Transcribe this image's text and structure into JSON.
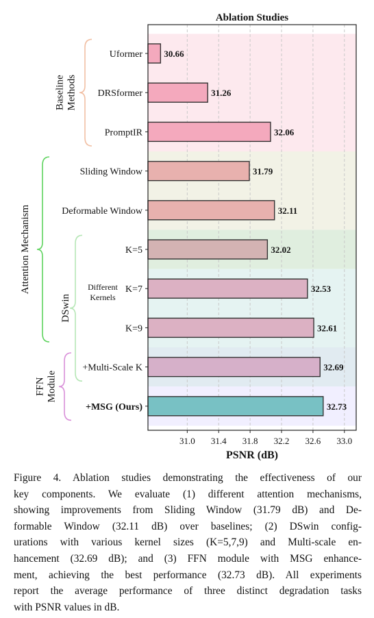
{
  "chart_data": {
    "type": "bar",
    "orientation": "horizontal",
    "title": "Ablation Studies",
    "xlabel": "PSNR (dB)",
    "xlim": [
      30.5,
      33.15
    ],
    "xticks": [
      31.0,
      31.4,
      31.8,
      32.2,
      32.6,
      33.0
    ],
    "xtick_labels": [
      "31.0",
      "31.4",
      "31.8",
      "32.2",
      "32.6",
      "33.0"
    ],
    "grid": "vertical dashed",
    "bars": [
      {
        "label": "Uformer",
        "value": 30.66,
        "value_label": "30.66",
        "color": "#f4a9bd"
      },
      {
        "label": "DRSformer",
        "value": 31.26,
        "value_label": "31.26",
        "color": "#f4a9bd"
      },
      {
        "label": "PromptIR",
        "value": 32.06,
        "value_label": "32.06",
        "color": "#f4a9bd"
      },
      {
        "label": "Sliding Window",
        "value": 31.79,
        "value_label": "31.79",
        "color": "#e8b1ae"
      },
      {
        "label": "Deformable Window",
        "value": 32.11,
        "value_label": "32.11",
        "color": "#e8b1ae"
      },
      {
        "label": "K=5",
        "value": 32.02,
        "value_label": "32.02",
        "color": "#d3b3b3"
      },
      {
        "label": "K=7",
        "value": 32.53,
        "value_label": "32.53",
        "color": "#dcb1c3"
      },
      {
        "label": "K=9",
        "value": 32.61,
        "value_label": "32.61",
        "color": "#dcb1c3"
      },
      {
        "label": "+Multi-Scale K",
        "value": 32.69,
        "value_label": "32.69",
        "color": "#d6b0c9"
      },
      {
        "label": "+MSG (Ours)",
        "value": 32.73,
        "value_label": "32.73",
        "color": "#78c1c4",
        "bold": true
      }
    ],
    "bands": [
      {
        "from": 0,
        "to": 2,
        "color": "#fde9ee"
      },
      {
        "from": 3,
        "to": 4,
        "color": "#f2f2e6"
      },
      {
        "from": 5,
        "to": 5,
        "color": "#e0eedf"
      },
      {
        "from": 6,
        "to": 7,
        "color": "#e5f3f2"
      },
      {
        "from": 8,
        "to": 8,
        "color": "#e1ebf1"
      },
      {
        "from": 9,
        "to": 9,
        "color": "#f1efff"
      }
    ],
    "groups": [
      {
        "lines": [
          "Baseline",
          "Methods"
        ],
        "from": 0,
        "to": 2,
        "color": "#f1bfa3",
        "level": 0
      },
      {
        "lines": [
          "Attention Mechanism"
        ],
        "from": 3,
        "to": 7,
        "color": "#5fd35f",
        "level": 1
      },
      {
        "lines": [
          "DSwin"
        ],
        "from": 5,
        "to": 8,
        "color": "#b5e6b5",
        "level": 0
      },
      {
        "lines": [
          "FFN",
          "Module"
        ],
        "from": 8,
        "to": 9,
        "color": "#d98fd9",
        "level": 0
      }
    ],
    "sublabel": {
      "lines": [
        "Different",
        "Kernels"
      ],
      "near": 6
    }
  },
  "caption": {
    "lines": [
      "Figure 4.  Ablation studies demonstrating the effectiveness of our",
      "key components. We evaluate (1) different attention mechanisms,",
      "showing improvements from Sliding Window (31.79 dB) and De-",
      "formable Window (32.11 dB) over baselines; (2) DSwin config-",
      "urations with various kernel sizes (K=5,7,9) and Multi-scale en-",
      "hancement (32.69 dB); and (3) FFN module with MSG enhance-",
      "ment, achieving the best performance (32.73 dB). All experiments",
      "report the average performance of three distinct degradation tasks",
      "with PSNR values in dB."
    ]
  }
}
